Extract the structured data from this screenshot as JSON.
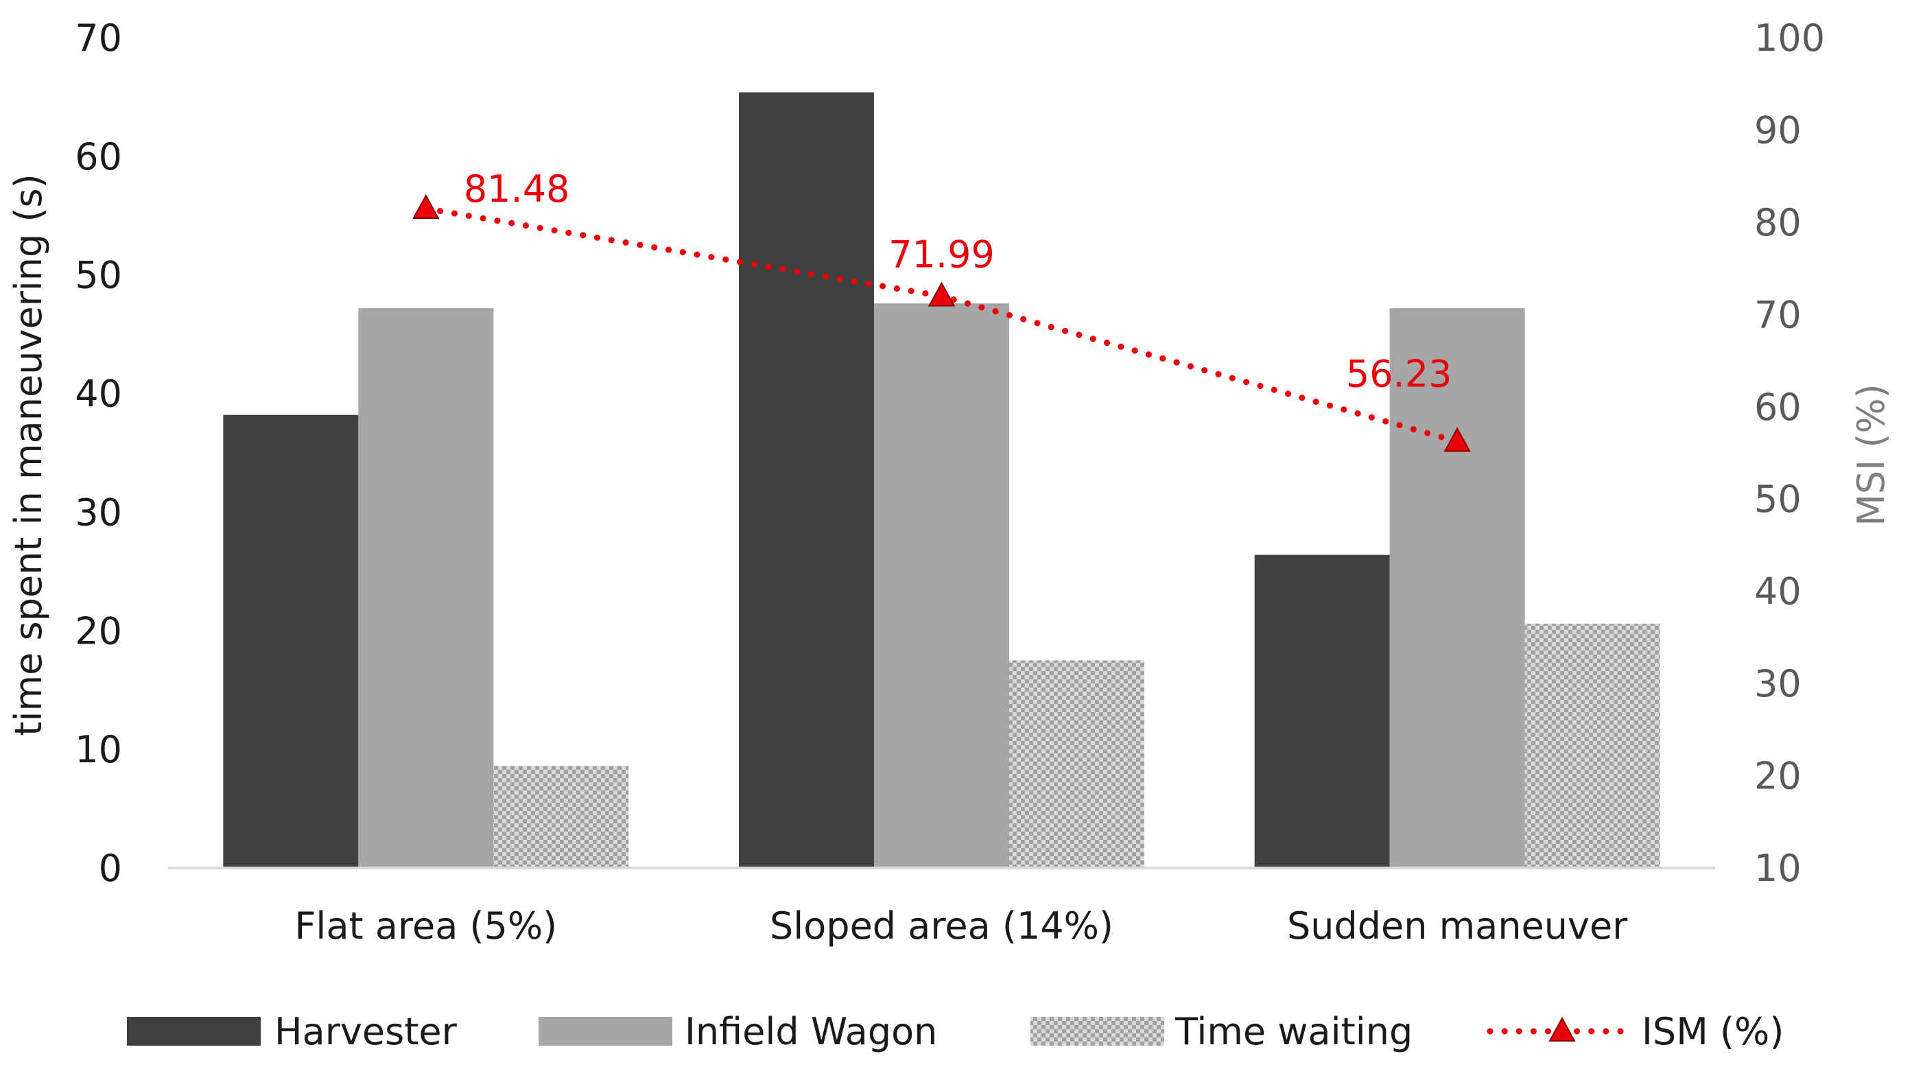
{
  "chart_data": {
    "type": "bar",
    "categories": [
      "Flat area (5%)",
      "Sloped area (14%)",
      "Sudden maneuver"
    ],
    "series": [
      {
        "name": "Harvester",
        "values": [
          38.2,
          65.4,
          26.4
        ],
        "color": "#404040",
        "pattern": "solid"
      },
      {
        "name": "Infield Wagon",
        "values": [
          47.2,
          47.6,
          47.2
        ],
        "color": "#a6a6a6",
        "pattern": "solid"
      },
      {
        "name": "Time waiting",
        "values": [
          8.6,
          17.5,
          20.6
        ],
        "color": "#bfbfbf",
        "pattern": "checker"
      }
    ],
    "line_series": {
      "name": "ISM (%)",
      "values": [
        81.48,
        71.99,
        56.23
      ],
      "labels": [
        "81.48",
        "71.99",
        "56.23"
      ],
      "color": "#e8000b",
      "marker": "triangle",
      "style": "dotted",
      "axis": "right"
    },
    "ylabel": "time spent in maneuvering (s)",
    "ylim": [
      0,
      70
    ],
    "yticks": [
      "0",
      "10",
      "20",
      "30",
      "40",
      "50",
      "60",
      "70"
    ],
    "y2label": "MSI (%)",
    "y2lim": [
      10,
      100
    ],
    "y2ticks": [
      "10",
      "20",
      "30",
      "40",
      "50",
      "60",
      "70",
      "80",
      "90",
      "100"
    ],
    "grid": false,
    "legend_position": "bottom"
  }
}
